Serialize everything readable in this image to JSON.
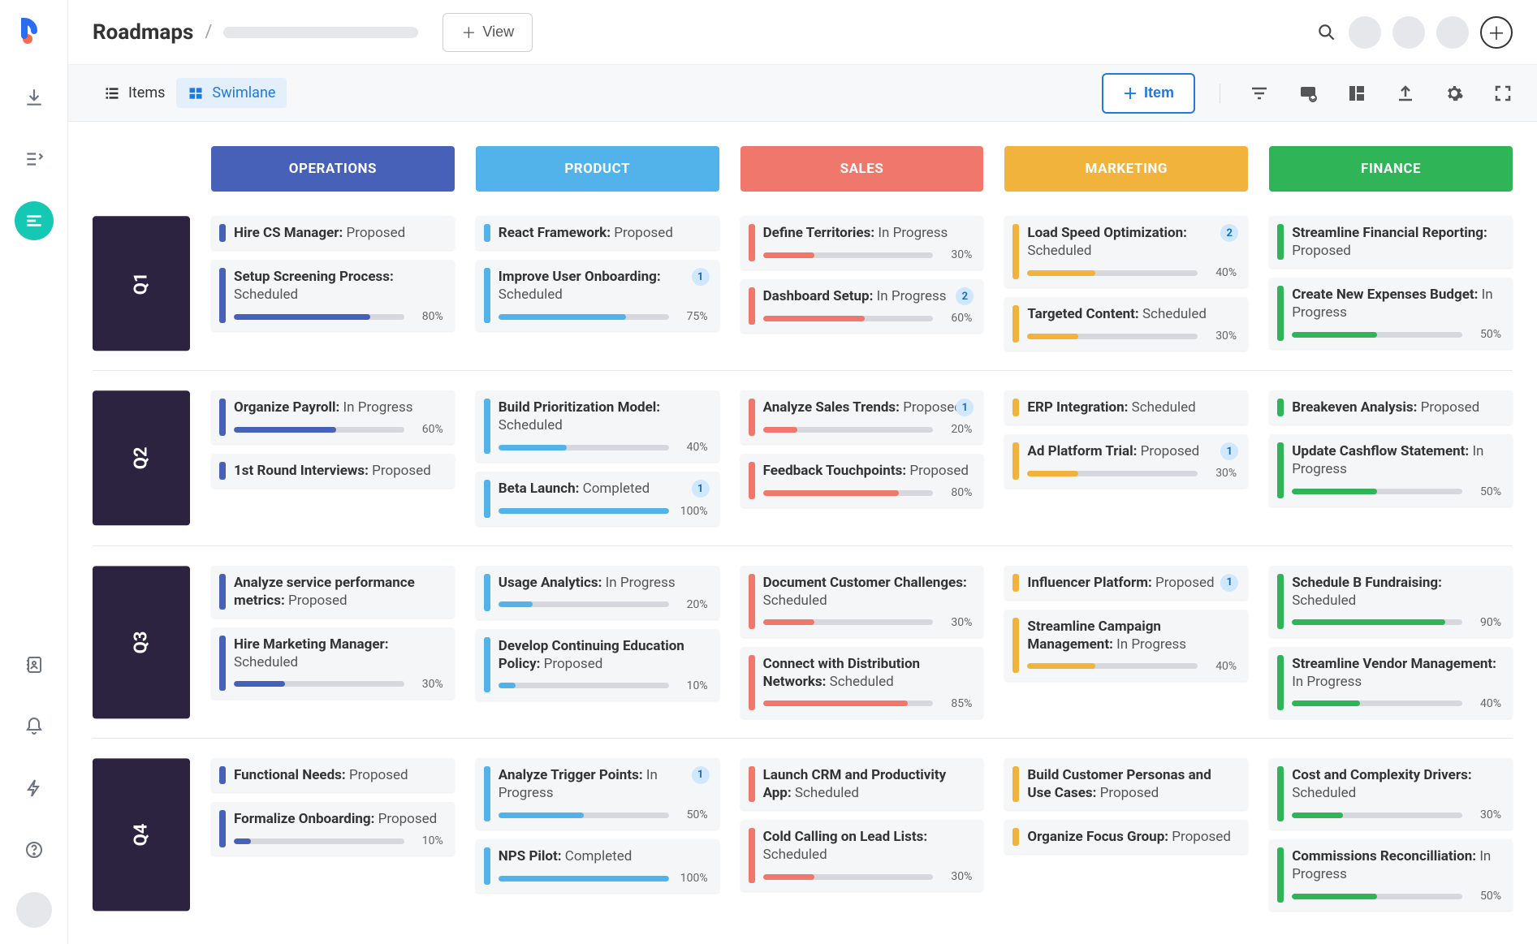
{
  "header": {
    "title": "Roadmaps",
    "view_button": "View"
  },
  "toolbar": {
    "items_label": "Items",
    "swimlane_label": "Swimlane",
    "add_item_label": "Item"
  },
  "lanes": [
    {
      "key": "operations",
      "label": "OPERATIONS",
      "color": "#4760b8"
    },
    {
      "key": "product",
      "label": "PRODUCT",
      "color": "#52b3ea"
    },
    {
      "key": "sales",
      "label": "SALES",
      "color": "#f0776b"
    },
    {
      "key": "marketing",
      "label": "MARKETING",
      "color": "#f2b33d"
    },
    {
      "key": "finance",
      "label": "FINANCE",
      "color": "#2fb457"
    }
  ],
  "quarters": [
    "Q1",
    "Q2",
    "Q3",
    "Q4"
  ],
  "colors": {
    "q_bg": "#2c2340",
    "badge_bg": "#cfe8ff",
    "badge_fg": "#1f6db5",
    "track": "#d6d8dd"
  },
  "board": {
    "Q1": {
      "operations": [
        {
          "title": "Hire CS Manager:",
          "status": "Proposed"
        },
        {
          "title": "Setup Screening Process:",
          "status": "Scheduled",
          "progress": 80
        }
      ],
      "product": [
        {
          "title": "React Framework:",
          "status": "Proposed"
        },
        {
          "title": "Improve User Onboarding:",
          "status": "Scheduled",
          "progress": 75,
          "badge": 1
        }
      ],
      "sales": [
        {
          "title": "Define Territories:",
          "status": "In Progress",
          "progress": 30
        },
        {
          "title": "Dashboard Setup:",
          "status": "In Progress",
          "progress": 60,
          "badge": 2
        }
      ],
      "marketing": [
        {
          "title": "Load Speed Optimization:",
          "status": "Scheduled",
          "progress": 40,
          "badge": 2
        },
        {
          "title": "Targeted Content:",
          "status": "Scheduled",
          "progress": 30
        }
      ],
      "finance": [
        {
          "title": "Streamline Financial Reporting:",
          "status": "Proposed"
        },
        {
          "title": "Create New Expenses Budget:",
          "status": "In Progress",
          "progress": 50
        }
      ]
    },
    "Q2": {
      "operations": [
        {
          "title": "Organize Payroll:",
          "status": "In Progress",
          "progress": 60
        },
        {
          "title": "1st Round Interviews:",
          "status": "Proposed"
        }
      ],
      "product": [
        {
          "title": "Build Prioritization Model:",
          "status": "Scheduled",
          "progress": 40
        },
        {
          "title": "Beta Launch:",
          "status": "Completed",
          "progress": 100,
          "badge": 1
        }
      ],
      "sales": [
        {
          "title": "Analyze Sales Trends:",
          "status": "Proposed",
          "progress": 20,
          "badge": 1
        },
        {
          "title": "Feedback Touchpoints:",
          "status": "Proposed",
          "progress": 80
        }
      ],
      "marketing": [
        {
          "title": "ERP Integration:",
          "status": "Scheduled"
        },
        {
          "title": "Ad Platform Trial:",
          "status": "Proposed",
          "progress": 30,
          "badge": 1
        }
      ],
      "finance": [
        {
          "title": "Breakeven Analysis:",
          "status": "Proposed"
        },
        {
          "title": "Update Cashflow Statement:",
          "status": "In Progress",
          "progress": 50
        }
      ]
    },
    "Q3": {
      "operations": [
        {
          "title": "Analyze service performance metrics:",
          "status": "Proposed"
        },
        {
          "title": "Hire Marketing Manager:",
          "status": "Scheduled",
          "progress": 30
        }
      ],
      "product": [
        {
          "title": "Usage Analytics:",
          "status": "In Progress",
          "progress": 20
        },
        {
          "title": "Develop Continuing Education Policy:",
          "status": "Proposed",
          "progress": 10
        }
      ],
      "sales": [
        {
          "title": "Document Customer Challenges:",
          "status": "Scheduled",
          "progress": 30
        },
        {
          "title": "Connect with Distribution Networks:",
          "status": "Scheduled",
          "progress": 85
        }
      ],
      "marketing": [
        {
          "title": "Influencer Platform:",
          "status": "Proposed",
          "badge": 1
        },
        {
          "title": "Streamline Campaign Management:",
          "status": "In Progress",
          "progress": 40
        }
      ],
      "finance": [
        {
          "title": "Schedule B Fundraising:",
          "status": "Scheduled",
          "progress": 90
        },
        {
          "title": "Streamline Vendor Management:",
          "status": "In Progress",
          "progress": 40
        }
      ]
    },
    "Q4": {
      "operations": [
        {
          "title": "Functional Needs:",
          "status": "Proposed"
        },
        {
          "title": "Formalize Onboarding:",
          "status": "Proposed",
          "progress": 10
        }
      ],
      "product": [
        {
          "title": "Analyze Trigger Points:",
          "status": "In Progress",
          "progress": 50,
          "badge": 1
        },
        {
          "title": "NPS Pilot:",
          "status": "Completed",
          "progress": 100
        }
      ],
      "sales": [
        {
          "title": "Launch CRM and Productivity App:",
          "status": "Scheduled"
        },
        {
          "title": "Cold Calling on Lead Lists:",
          "status": "Scheduled",
          "progress": 30
        }
      ],
      "marketing": [
        {
          "title": "Build Customer Personas and Use Cases:",
          "status": "Proposed"
        },
        {
          "title": "Organize Focus Group:",
          "status": "Proposed"
        }
      ],
      "finance": [
        {
          "title": "Cost and Complexity Drivers:",
          "status": "Scheduled",
          "progress": 30
        },
        {
          "title": "Commissions Reconcilliation:",
          "status": "In Progress",
          "progress": 50
        }
      ]
    }
  }
}
